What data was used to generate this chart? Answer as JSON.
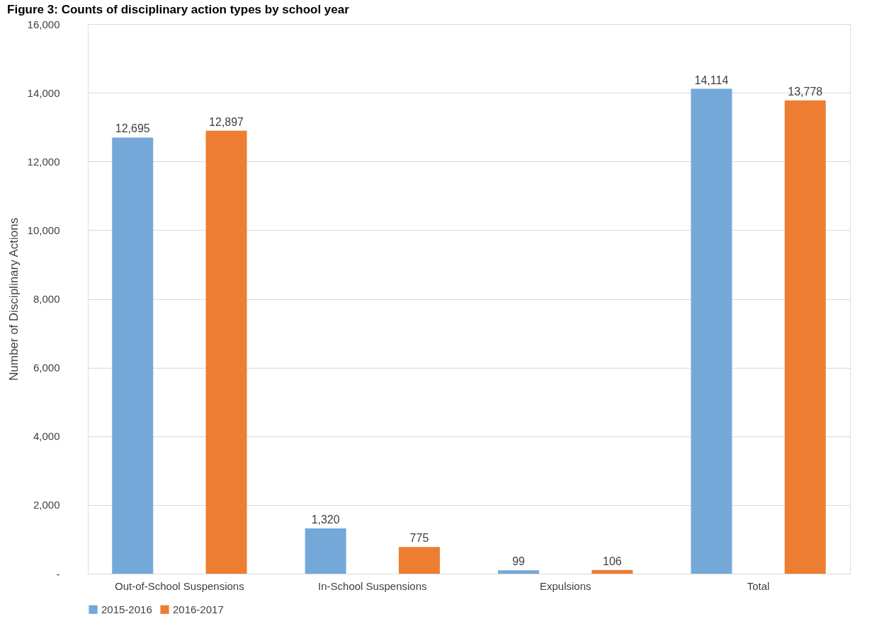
{
  "chart_data": {
    "type": "bar",
    "title": "Figure 3: Counts of disciplinary action types by school year",
    "ylabel": "Number of Disciplinary Actions",
    "categories": [
      "Out-of-School Suspensions",
      "In-School Suspensions",
      "Expulsions",
      "Total"
    ],
    "series": [
      {
        "name": "2015-2016",
        "color": "#73a8d9",
        "values": [
          12695,
          1320,
          99,
          14114
        ],
        "value_labels": [
          "12,695",
          "1,320",
          "99",
          "14,114"
        ]
      },
      {
        "name": "2016-2017",
        "color": "#ed7d31",
        "values": [
          12897,
          775,
          106,
          13778
        ],
        "value_labels": [
          "12,897",
          "775",
          "106",
          "13,778"
        ]
      }
    ],
    "ylim": [
      0,
      16000
    ],
    "yticks": [
      {
        "value": 0,
        "label": "-"
      },
      {
        "value": 2000,
        "label": "2,000"
      },
      {
        "value": 4000,
        "label": "4,000"
      },
      {
        "value": 6000,
        "label": "6,000"
      },
      {
        "value": 8000,
        "label": "8,000"
      },
      {
        "value": 10000,
        "label": "10,000"
      },
      {
        "value": 12000,
        "label": "12,000"
      },
      {
        "value": 14000,
        "label": "14,000"
      },
      {
        "value": 16000,
        "label": "16,000"
      }
    ],
    "grid": "y",
    "legend": "bottom"
  }
}
